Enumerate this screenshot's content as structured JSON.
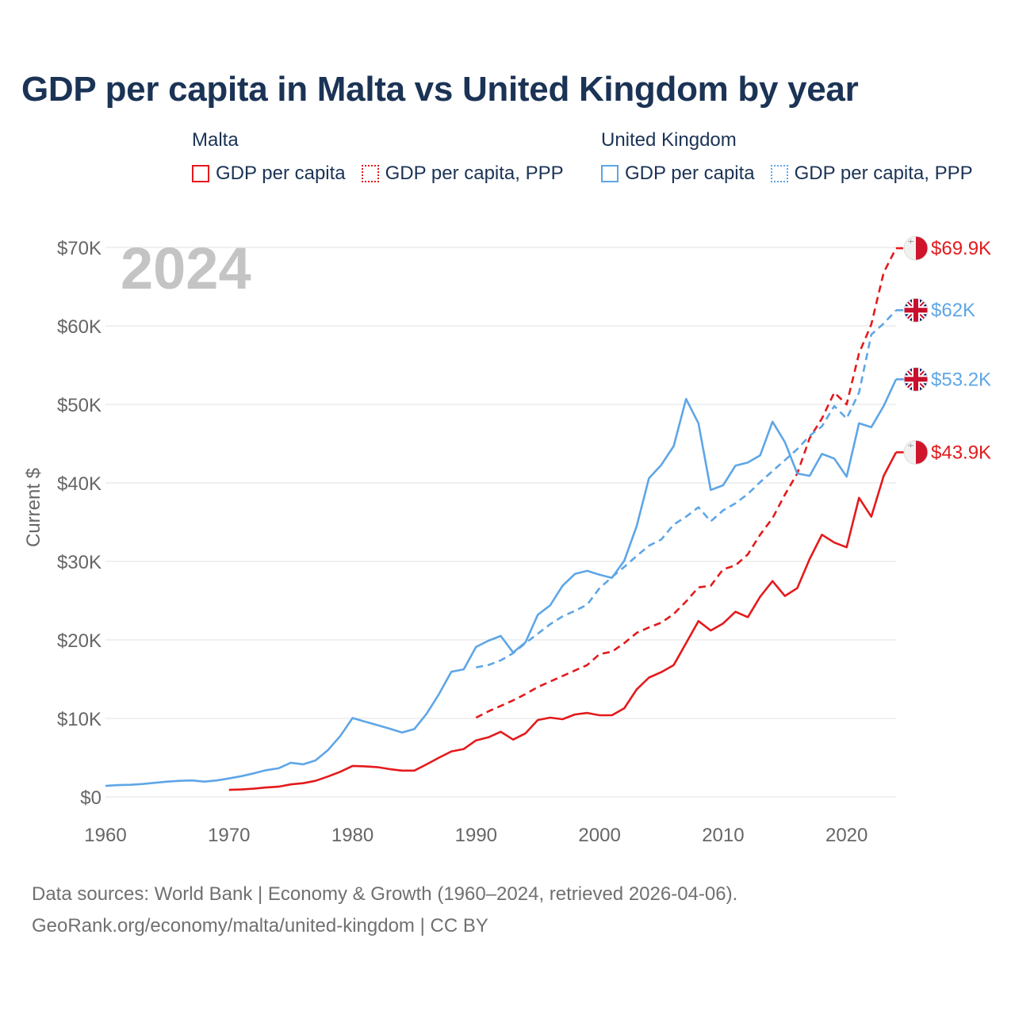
{
  "header": {
    "title": "GDP per capita in Malta vs United Kingdom by year"
  },
  "legend": {
    "malta": {
      "title": "Malta",
      "gdp_label": "GDP per capita",
      "ppp_label": "GDP per capita, PPP"
    },
    "uk": {
      "title": "United Kingdom",
      "gdp_label": "GDP per capita",
      "ppp_label": "GDP per capita, PPP"
    }
  },
  "source": {
    "line1": "Data sources: World Bank | Economy & Growth (1960–2024, retrieved 2026-04-06).",
    "line2": "GeoRank.org/economy/malta/united-kingdom | CC BY"
  },
  "colors": {
    "malta": "#e31a1c",
    "uk": "#5ea6e6",
    "title": "#1b3355",
    "axis_text": "#666666",
    "grid": "#e6e6e6",
    "year_watermark": "#c4c4c4"
  },
  "chart_data": {
    "type": "line",
    "title": "GDP per capita in Malta vs United Kingdom by year",
    "watermark_year": "2024",
    "ylabel": "Current $",
    "xlabel": "",
    "xlim": [
      1960,
      2024
    ],
    "ylim": [
      0,
      70000
    ],
    "x_ticks": [
      1960,
      1970,
      1980,
      1990,
      2000,
      2010,
      2020
    ],
    "y_ticks": [
      {
        "value": 0,
        "label": "$0"
      },
      {
        "value": 10000,
        "label": "$10K"
      },
      {
        "value": 20000,
        "label": "$20K"
      },
      {
        "value": 30000,
        "label": "$30K"
      },
      {
        "value": 40000,
        "label": "$40K"
      },
      {
        "value": 50000,
        "label": "$50K"
      },
      {
        "value": 60000,
        "label": "$60K"
      },
      {
        "value": 70000,
        "label": "$70K"
      }
    ],
    "series": [
      {
        "name": "Malta GDP per capita",
        "country": "malta",
        "style": "solid",
        "color": "#e31a1c",
        "end_label": "$43.9K",
        "flag": "malta",
        "start_year": 1970,
        "values": [
          900,
          950,
          1050,
          1200,
          1300,
          1600,
          1750,
          2050,
          2600,
          3200,
          3950,
          3900,
          3800,
          3550,
          3350,
          3350,
          4150,
          5000,
          5800,
          6100,
          7200,
          7600,
          8300,
          7300,
          8100,
          9800,
          10100,
          9900,
          10500,
          10700,
          10400,
          10400,
          11300,
          13700,
          15200,
          15900,
          16800,
          19600,
          22400,
          21200,
          22100,
          23600,
          22900,
          25500,
          27500,
          25600,
          26600,
          30300,
          33400,
          32400,
          31800,
          38100,
          35700,
          40900,
          43900
        ]
      },
      {
        "name": "Malta GDP per capita, PPP",
        "country": "malta",
        "style": "dashed",
        "color": "#e31a1c",
        "end_label": "$69.9K",
        "flag": "malta",
        "start_year": 1990,
        "values": [
          10100,
          10900,
          11600,
          12300,
          13100,
          14000,
          14700,
          15400,
          16100,
          16800,
          18200,
          18500,
          19600,
          20900,
          21600,
          22200,
          23300,
          24900,
          26700,
          26900,
          29000,
          29500,
          30900,
          33400,
          35500,
          38500,
          41200,
          45700,
          48200,
          51500,
          50000,
          56500,
          60200,
          66800,
          69900
        ]
      },
      {
        "name": "United Kingdom GDP per capita",
        "country": "uk",
        "style": "solid",
        "color": "#5ea6e6",
        "end_label": "$53.2K",
        "flag": "uk",
        "start_year": 1960,
        "values": [
          1400,
          1500,
          1550,
          1650,
          1800,
          1950,
          2050,
          2100,
          1950,
          2100,
          2350,
          2650,
          3000,
          3400,
          3650,
          4350,
          4150,
          4650,
          5950,
          7750,
          10050,
          9600,
          9150,
          8700,
          8200,
          8650,
          10600,
          13100,
          15950,
          16250,
          19100,
          19900,
          20500,
          18400,
          19700,
          23200,
          24400,
          26900,
          28400,
          28800,
          28300,
          27900,
          30100,
          34500,
          40600,
          42300,
          44700,
          50700,
          47600,
          39100,
          39700,
          42200,
          42600,
          43500,
          47800,
          45200,
          41200,
          40900,
          43700,
          43100,
          40800,
          47600,
          47100,
          49800,
          53200
        ]
      },
      {
        "name": "United Kingdom GDP per capita, PPP",
        "country": "uk",
        "style": "dashed",
        "color": "#5ea6e6",
        "end_label": "$62K",
        "flag": "uk",
        "start_year": 1990,
        "values": [
          16500,
          16800,
          17400,
          18300,
          19600,
          20800,
          22000,
          23000,
          23700,
          24500,
          26600,
          28000,
          29300,
          30700,
          32000,
          32800,
          34700,
          35700,
          36900,
          35100,
          36500,
          37400,
          38600,
          40100,
          41500,
          42900,
          44300,
          46000,
          47200,
          49800,
          48200,
          51500,
          58900,
          60300,
          62000
        ]
      }
    ]
  }
}
